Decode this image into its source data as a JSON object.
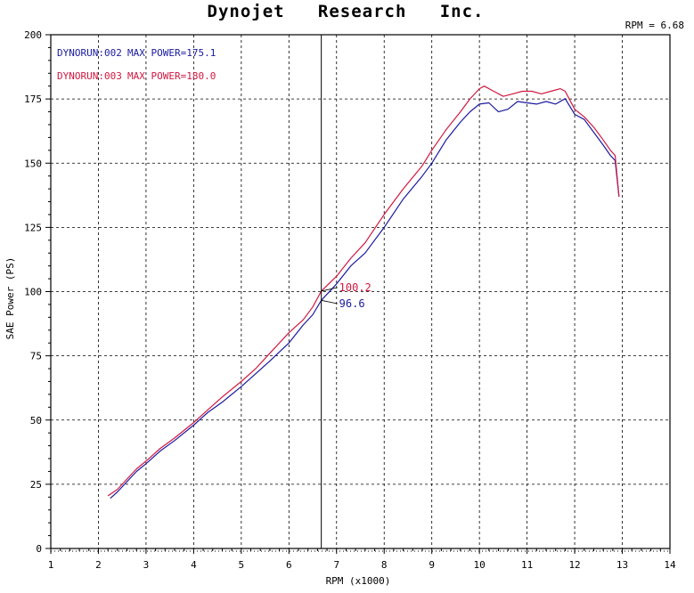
{
  "chart_data": {
    "type": "line",
    "title": "Dynojet   Research   Inc.",
    "xlabel": "RPM (x1000)",
    "ylabel": "SAE Power (PS)",
    "xlim": [
      1,
      14
    ],
    "ylim": [
      0,
      200
    ],
    "x_ticks": [
      "1",
      "2",
      "3",
      "4",
      "5",
      "6",
      "7",
      "8",
      "9",
      "10",
      "11",
      "12",
      "13",
      "14"
    ],
    "y_ticks": [
      "0",
      "25",
      "50",
      "75",
      "100",
      "125",
      "150",
      "175",
      "200"
    ],
    "grid": true,
    "legend_position": "top-left",
    "cursor": {
      "rpm": 6.68,
      "readout": "RPM = 6.68",
      "values": [
        "100.2",
        "96.6"
      ]
    },
    "series": [
      {
        "name": "DYNORUN:002",
        "legend_text": "MAX POWER=175.1",
        "color": "#1a1aa0",
        "x": [
          2.25,
          2.4,
          2.6,
          2.8,
          3.0,
          3.3,
          3.6,
          4.0,
          4.3,
          4.6,
          5.0,
          5.3,
          5.6,
          6.0,
          6.3,
          6.5,
          6.68,
          7.0,
          7.3,
          7.6,
          8.0,
          8.4,
          8.8,
          9.0,
          9.3,
          9.6,
          9.8,
          10.0,
          10.2,
          10.4,
          10.6,
          10.8,
          11.0,
          11.2,
          11.4,
          11.6,
          11.8,
          12.0,
          12.2,
          12.4,
          12.6,
          12.75,
          12.85,
          12.93
        ],
        "y": [
          19.5,
          22,
          26,
          30,
          33,
          38,
          42,
          48,
          53,
          57,
          63,
          68,
          73,
          80,
          87,
          91,
          96.6,
          103,
          110,
          115,
          125,
          136,
          145,
          150,
          159,
          166,
          170,
          173,
          173.5,
          170,
          171,
          174,
          173.5,
          173,
          174,
          173,
          175.1,
          169,
          167,
          162,
          157,
          153,
          151,
          137
        ]
      },
      {
        "name": "DYNORUN:003",
        "legend_text": "MAX POWER=180.0",
        "color": "#d01840",
        "x": [
          2.2,
          2.4,
          2.6,
          2.8,
          3.0,
          3.3,
          3.6,
          4.0,
          4.3,
          4.6,
          5.0,
          5.3,
          5.6,
          6.0,
          6.3,
          6.5,
          6.68,
          7.0,
          7.3,
          7.6,
          8.0,
          8.4,
          8.8,
          9.0,
          9.3,
          9.6,
          9.8,
          10.0,
          10.1,
          10.3,
          10.5,
          10.7,
          10.9,
          11.1,
          11.3,
          11.5,
          11.7,
          11.8,
          12.0,
          12.2,
          12.4,
          12.6,
          12.75,
          12.85,
          12.93
        ],
        "y": [
          20.5,
          23,
          27,
          31,
          34,
          39,
          43,
          49,
          54,
          59,
          65,
          70,
          76,
          84,
          89,
          94,
          100.2,
          106,
          113,
          119,
          130,
          140,
          149,
          155,
          163,
          170,
          175,
          179,
          180,
          178,
          176,
          177,
          178,
          178,
          177,
          178,
          179,
          178,
          171,
          168,
          164,
          159,
          155,
          153,
          137
        ]
      }
    ]
  }
}
